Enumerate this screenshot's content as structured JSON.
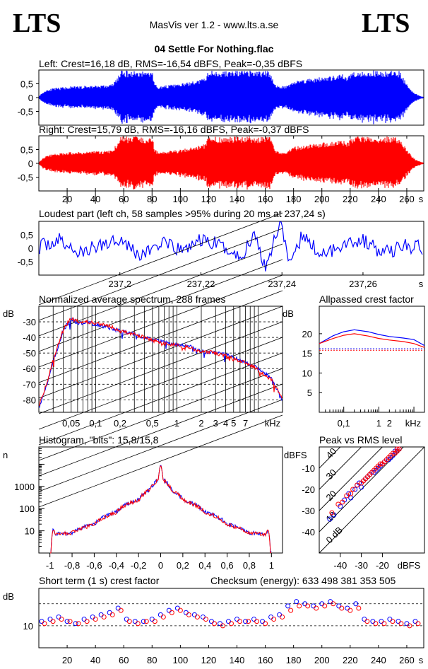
{
  "header": {
    "logo_left": "LTS",
    "logo_right": "LTS",
    "app_title": "MasVis ver 1.2 - www.lts.a.se",
    "file_name": "04 Settle For Nothing.flac"
  },
  "colors": {
    "left": "#0000ff",
    "right": "#ff0000",
    "axis": "#000000",
    "background": "#ffffff"
  },
  "chart_data": [
    {
      "id": "left-waveform",
      "type": "area",
      "title": "Left: Crest=16,18 dB, RMS=-16,54 dBFS, Peak=-0,35 dBFS",
      "xlabel": "s",
      "ylabel": "",
      "xlim": [
        0,
        272
      ],
      "ylim": [
        -1,
        1
      ],
      "yticks": [
        "0,5",
        "0",
        "-0,5"
      ],
      "series": [
        {
          "x": [
            0,
            3,
            6,
            12,
            20,
            30,
            40,
            48,
            52,
            55,
            58,
            61,
            65,
            70,
            75,
            80,
            82,
            85,
            90,
            100,
            110,
            117,
            120,
            125,
            130,
            140,
            150,
            160,
            163,
            167,
            170,
            175,
            180,
            190,
            200,
            210,
            215,
            218,
            222,
            225,
            230,
            235,
            240,
            245,
            250,
            255,
            260,
            263,
            266,
            270,
            272
          ],
          "values": [
            0.05,
            0.2,
            0.3,
            0.35,
            0.4,
            0.42,
            0.45,
            0.45,
            0.5,
            0.7,
            0.98,
            0.98,
            0.98,
            0.98,
            0.97,
            0.98,
            0.5,
            0.4,
            0.45,
            0.5,
            0.6,
            0.7,
            0.98,
            0.98,
            0.97,
            0.98,
            0.98,
            0.97,
            0.98,
            0.5,
            0.4,
            0.45,
            0.6,
            0.7,
            0.75,
            0.8,
            0.85,
            0.75,
            0.98,
            0.98,
            0.98,
            0.98,
            0.98,
            0.98,
            0.97,
            0.98,
            0.5,
            0.3,
            0.15,
            0.05,
            0.03
          ]
        }
      ]
    },
    {
      "id": "right-waveform",
      "type": "area",
      "title": "Right: Crest=15,79 dB, RMS=-16,16 dBFS, Peak=-0,37 dBFS",
      "xlabel": "s",
      "ylabel": "",
      "xlim": [
        0,
        272
      ],
      "ylim": [
        -1,
        1
      ],
      "yticks": [
        "0,5",
        "0",
        "-0,5"
      ],
      "xticks": [
        20,
        40,
        60,
        80,
        100,
        120,
        140,
        160,
        180,
        200,
        220,
        240,
        260
      ],
      "series": [
        {
          "x": [
            0,
            3,
            6,
            12,
            20,
            30,
            40,
            48,
            52,
            55,
            58,
            61,
            65,
            70,
            75,
            80,
            82,
            85,
            90,
            100,
            110,
            117,
            120,
            125,
            130,
            140,
            150,
            160,
            163,
            167,
            170,
            175,
            180,
            190,
            200,
            210,
            215,
            218,
            222,
            225,
            230,
            235,
            240,
            245,
            250,
            255,
            260,
            263,
            266,
            270,
            272
          ],
          "values": [
            0.05,
            0.2,
            0.3,
            0.35,
            0.4,
            0.42,
            0.45,
            0.45,
            0.5,
            0.7,
            0.98,
            0.98,
            0.98,
            0.98,
            0.97,
            0.98,
            0.5,
            0.4,
            0.45,
            0.5,
            0.6,
            0.7,
            0.98,
            0.98,
            0.97,
            0.98,
            0.98,
            0.97,
            0.98,
            0.5,
            0.4,
            0.45,
            0.6,
            0.7,
            0.75,
            0.8,
            0.85,
            0.75,
            0.98,
            0.98,
            0.98,
            0.98,
            0.98,
            0.98,
            0.97,
            0.98,
            0.5,
            0.3,
            0.15,
            0.05,
            0.03
          ]
        }
      ]
    },
    {
      "id": "loudest-part",
      "type": "line",
      "title": "Loudest part (left  ch, 58 samples >95% during 20 ms at 237,24 s)",
      "xlabel": "s",
      "ylabel": "",
      "xlim": [
        237.18,
        237.275
      ],
      "ylim": [
        -1,
        1
      ],
      "yticks": [
        "0,5",
        "0",
        "-0,5"
      ],
      "xticks": [
        "237,2",
        "237,22",
        "237,24",
        "237,26"
      ],
      "xtick_values": [
        237.2,
        237.22,
        237.24,
        237.26
      ],
      "series": [
        {
          "name": "left",
          "x": [
            237.18,
            237.185,
            237.19,
            237.195,
            237.2,
            237.205,
            237.21,
            237.215,
            237.22,
            237.225,
            237.23,
            237.233,
            237.236,
            237.239,
            237.24,
            237.242,
            237.245,
            237.25,
            237.255,
            237.26,
            237.265,
            237.27,
            237.275
          ],
          "values": [
            0.05,
            0.3,
            -0.2,
            0.1,
            0.4,
            -0.3,
            0.2,
            -0.1,
            0.3,
            0.1,
            -0.4,
            0.6,
            -0.7,
            0.8,
            0.95,
            -0.8,
            0.5,
            -0.3,
            0.2,
            0.3,
            -0.2,
            0.1,
            0.0
          ]
        }
      ]
    },
    {
      "id": "avg-spectrum",
      "type": "line",
      "title": "Normalized average spectrum, 288 frames",
      "xlabel": "kHz",
      "ylabel": "dB",
      "xlim": [
        0.02,
        20
      ],
      "ylim": [
        -88,
        -20
      ],
      "xticks": [
        "0,05",
        "0,1",
        "0,2",
        "0,5",
        "1",
        "2",
        "3",
        "4",
        "5",
        "7"
      ],
      "xtick_values": [
        0.05,
        0.1,
        0.2,
        0.5,
        1,
        2,
        3,
        4,
        5,
        7
      ],
      "yticks": [
        -30,
        -40,
        -50,
        -60,
        -70,
        -80
      ],
      "series": [
        {
          "name": "left",
          "x": [
            0.02,
            0.03,
            0.04,
            0.05,
            0.06,
            0.08,
            0.1,
            0.15,
            0.2,
            0.3,
            0.5,
            0.7,
            1,
            1.5,
            2,
            3,
            4,
            5,
            7,
            10,
            15,
            20
          ],
          "values": [
            -85,
            -55,
            -35,
            -28,
            -31,
            -30,
            -32,
            -34,
            -36,
            -38,
            -42,
            -43,
            -45,
            -46,
            -49,
            -50,
            -51,
            -53,
            -56,
            -60,
            -67,
            -82
          ]
        },
        {
          "name": "right",
          "x": [
            0.02,
            0.03,
            0.04,
            0.05,
            0.06,
            0.08,
            0.1,
            0.15,
            0.2,
            0.3,
            0.5,
            0.7,
            1,
            1.5,
            2,
            3,
            4,
            5,
            7,
            10,
            15,
            20
          ],
          "values": [
            -84,
            -54,
            -34,
            -28,
            -30,
            -30,
            -31,
            -33,
            -36,
            -38,
            -42,
            -44,
            -45,
            -47,
            -49,
            -50,
            -52,
            -54,
            -56,
            -61,
            -68,
            -80
          ]
        }
      ]
    },
    {
      "id": "allpassed-crest",
      "type": "line",
      "title": "Allpassed crest factor",
      "xlabel": "kHz",
      "ylabel": "dB",
      "xlim": [
        0.02,
        20
      ],
      "ylim": [
        0,
        27
      ],
      "xticks": [
        "0,1",
        "1",
        "2"
      ],
      "xtick_values": [
        0.1,
        1,
        2
      ],
      "yticks": [
        20,
        15,
        10,
        5
      ],
      "series": [
        {
          "name": "left",
          "x": [
            0.02,
            0.05,
            0.1,
            0.2,
            0.5,
            1,
            2,
            5,
            10,
            20
          ],
          "values": [
            17.5,
            19.5,
            20.5,
            21,
            20.5,
            19.8,
            19.3,
            18.9,
            18.5,
            17
          ]
        },
        {
          "name": "right",
          "x": [
            0.02,
            0.05,
            0.1,
            0.2,
            0.5,
            1,
            2,
            5,
            10,
            20
          ],
          "values": [
            17.5,
            18.8,
            19.6,
            20,
            19.4,
            18.8,
            18.4,
            18,
            17.5,
            16.5
          ]
        }
      ],
      "reference": {
        "left": 16.18,
        "right": 15.79
      }
    },
    {
      "id": "histogram",
      "type": "line",
      "title": "Histogram, \"bits\": 15,8/15,8",
      "xlabel": "",
      "ylabel": "n",
      "xlim": [
        -1.1,
        1.1
      ],
      "ylim": [
        1,
        60000
      ],
      "log_y": true,
      "xticks": [
        "-1",
        "-0,8",
        "-0,6",
        "-0,4",
        "-0,2",
        "0",
        "0,2",
        "0,4",
        "0,6",
        "0,8",
        "1"
      ],
      "xtick_values": [
        -1,
        -0.8,
        -0.6,
        -0.4,
        -0.2,
        0,
        0.2,
        0.4,
        0.6,
        0.8,
        1
      ],
      "yticks": [
        "1000",
        "100",
        "10"
      ],
      "ytick_values": [
        1000,
        100,
        10
      ],
      "series": [
        {
          "name": "left",
          "x": [
            -0.99,
            -0.97,
            -0.95,
            -0.8,
            -0.6,
            -0.4,
            -0.2,
            -0.1,
            -0.02,
            0,
            0.02,
            0.1,
            0.2,
            0.4,
            0.6,
            0.8,
            0.95,
            0.97,
            0.99
          ],
          "values": [
            1,
            12,
            7,
            8,
            20,
            70,
            250,
            700,
            2000,
            10000,
            2000,
            700,
            250,
            70,
            20,
            8,
            7,
            12,
            1
          ]
        },
        {
          "name": "right",
          "x": [
            -0.99,
            -0.97,
            -0.95,
            -0.8,
            -0.6,
            -0.4,
            -0.2,
            -0.1,
            -0.02,
            0,
            0.02,
            0.1,
            0.2,
            0.4,
            0.6,
            0.8,
            0.95,
            0.97,
            0.99
          ],
          "values": [
            1,
            11,
            7,
            8,
            19,
            68,
            240,
            690,
            2000,
            9500,
            2000,
            690,
            240,
            68,
            19,
            8,
            7,
            11,
            1
          ]
        }
      ]
    },
    {
      "id": "peak-vs-rms",
      "type": "scatter",
      "title": "Peak vs RMS level",
      "xlabel": "dBFS",
      "ylabel": "dBFS",
      "xlim": [
        -50,
        0
      ],
      "ylim": [
        -50,
        0
      ],
      "xticks": [
        -40,
        -30,
        -20
      ],
      "yticks": [
        -10,
        -20,
        -30,
        -40
      ],
      "diagonal_labels": [
        "40",
        "30",
        "20",
        "10",
        "0 dB"
      ],
      "diagonal_values": [
        40,
        30,
        20,
        10,
        0
      ],
      "series": [
        {
          "name": "left",
          "x": [
            -45,
            -43,
            -40,
            -38,
            -36,
            -35,
            -33,
            -32,
            -31,
            -30,
            -29,
            -28,
            -27,
            -26,
            -25,
            -24,
            -23,
            -22,
            -21,
            -20,
            -19,
            -18,
            -17,
            -16,
            -15,
            -14,
            -14,
            -13,
            -13,
            -12
          ],
          "values": [
            -34,
            -32,
            -28,
            -25,
            -22,
            -24,
            -20,
            -18,
            -17,
            -19,
            -16,
            -15,
            -14,
            -13,
            -12,
            -12,
            -11,
            -10,
            -9,
            -8,
            -7,
            -6,
            -6,
            -5,
            -4,
            -3,
            -2,
            -2,
            -1,
            -1
          ]
        },
        {
          "name": "right",
          "x": [
            -44,
            -41,
            -39,
            -37,
            -35,
            -34,
            -32,
            -30,
            -29,
            -28,
            -27,
            -26,
            -25,
            -24,
            -23,
            -22,
            -21,
            -20,
            -19,
            -18,
            -17,
            -16,
            -15,
            -14,
            -13,
            -13,
            -12
          ],
          "values": [
            -31,
            -27,
            -26,
            -23,
            -22,
            -20,
            -18,
            -17,
            -16,
            -15,
            -14,
            -13,
            -12,
            -11,
            -10,
            -9,
            -8,
            -8,
            -7,
            -6,
            -5,
            -4,
            -3,
            -3,
            -2,
            -1,
            -1
          ]
        }
      ]
    },
    {
      "id": "short-term-crest",
      "type": "scatter",
      "title": "Short term (1 s) crest factor",
      "subtitle": "Checksum (energy):  633 498 381 353 505",
      "xlabel": "s",
      "ylabel": "dB",
      "xlim": [
        0,
        272
      ],
      "ylim": [
        0,
        27
      ],
      "xticks": [
        20,
        40,
        60,
        80,
        100,
        120,
        140,
        160,
        180,
        200,
        220,
        240,
        260
      ],
      "yticks": [
        "10"
      ],
      "ytick_values": [
        10
      ],
      "dashed_levels": [
        10,
        20
      ],
      "series": [
        {
          "name": "left",
          "x": [
            2,
            8,
            14,
            20,
            26,
            32,
            38,
            44,
            50,
            56,
            62,
            68,
            74,
            80,
            86,
            92,
            98,
            104,
            110,
            116,
            122,
            128,
            134,
            140,
            146,
            152,
            158,
            164,
            170,
            176,
            182,
            188,
            194,
            200,
            206,
            212,
            218,
            224,
            230,
            236,
            242,
            248,
            254,
            260,
            266
          ],
          "values": [
            12,
            13,
            14,
            12,
            11,
            13,
            14,
            15,
            16,
            18,
            13,
            12,
            12,
            13,
            15,
            17,
            18,
            16,
            15,
            14,
            12,
            11,
            12,
            13,
            12,
            13,
            12,
            14,
            15,
            19,
            21,
            20,
            19,
            20,
            21,
            19,
            18,
            20,
            13,
            12,
            12,
            13,
            12,
            11,
            12
          ]
        },
        {
          "name": "right",
          "x": [
            4,
            10,
            16,
            22,
            28,
            34,
            40,
            46,
            52,
            58,
            64,
            70,
            76,
            82,
            88,
            94,
            100,
            106,
            112,
            118,
            124,
            130,
            136,
            142,
            148,
            154,
            160,
            166,
            172,
            178,
            184,
            190,
            196,
            202,
            208,
            214,
            220,
            226,
            232,
            238,
            244,
            250,
            256,
            262,
            268
          ],
          "values": [
            11,
            12,
            13,
            12,
            11,
            12,
            13,
            14,
            15,
            17,
            12,
            11,
            12,
            12,
            14,
            16,
            17,
            15,
            14,
            13,
            11,
            10,
            11,
            12,
            12,
            12,
            11,
            13,
            14,
            17,
            19,
            19,
            18,
            19,
            20,
            18,
            17,
            18,
            12,
            11,
            11,
            12,
            11,
            10,
            11
          ]
        }
      ]
    }
  ]
}
